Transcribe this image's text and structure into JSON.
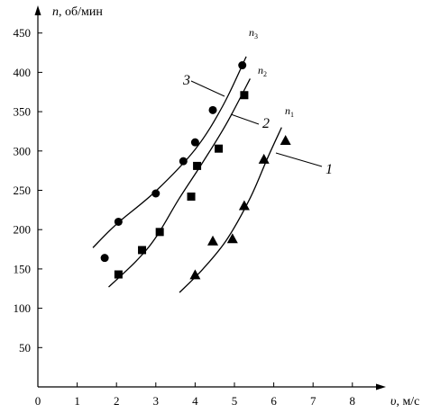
{
  "chart_data": {
    "type": "scatter",
    "title": "",
    "xlabel": "υ, м/с",
    "xlabel_var": "υ",
    "xlabel_unit": ", м/с",
    "ylabel": "n, об/мин",
    "ylabel_var": "n",
    "ylabel_unit": ", об/мин",
    "xlim": [
      0,
      8.6
    ],
    "ylim": [
      0,
      470
    ],
    "xticks": [
      0,
      1,
      2,
      3,
      4,
      5,
      6,
      7,
      8
    ],
    "yticks": [
      50,
      100,
      150,
      200,
      250,
      300,
      350,
      400,
      450
    ],
    "grid": false,
    "legend": "none",
    "series": [
      {
        "id": "3",
        "number_label": "3",
        "curve_label": "n",
        "curve_sub": "3",
        "marker": "circle",
        "points": [
          [
            1.7,
            164
          ],
          [
            2.05,
            210
          ],
          [
            3.0,
            246
          ],
          [
            3.7,
            287
          ],
          [
            4.0,
            311
          ],
          [
            4.45,
            352
          ],
          [
            5.2,
            409
          ]
        ],
        "curve": [
          [
            1.4,
            177
          ],
          [
            2.0,
            207
          ],
          [
            3.0,
            249
          ],
          [
            4.0,
            302
          ],
          [
            4.7,
            357
          ],
          [
            5.3,
            420
          ]
        ]
      },
      {
        "id": "2",
        "number_label": "2",
        "curve_label": "n",
        "curve_sub": "2",
        "marker": "square",
        "points": [
          [
            2.05,
            143
          ],
          [
            2.65,
            174
          ],
          [
            3.1,
            197
          ],
          [
            3.9,
            242
          ],
          [
            4.05,
            281
          ],
          [
            4.6,
            303
          ],
          [
            5.25,
            371
          ]
        ],
        "curve": [
          [
            1.8,
            127
          ],
          [
            2.5,
            160
          ],
          [
            3.0,
            190
          ],
          [
            3.6,
            240
          ],
          [
            4.2,
            286
          ],
          [
            4.8,
            335
          ],
          [
            5.4,
            392
          ]
        ]
      },
      {
        "id": "1",
        "number_label": "1",
        "curve_label": "n",
        "curve_sub": "1",
        "marker": "triangle",
        "points": [
          [
            4.0,
            142
          ],
          [
            4.45,
            185
          ],
          [
            4.95,
            188
          ],
          [
            5.25,
            230
          ],
          [
            5.75,
            289
          ],
          [
            6.3,
            313
          ]
        ],
        "curve": [
          [
            3.6,
            120
          ],
          [
            4.2,
            150
          ],
          [
            4.8,
            187
          ],
          [
            5.4,
            240
          ],
          [
            5.85,
            292
          ],
          [
            6.2,
            330
          ]
        ]
      }
    ],
    "colors": {
      "ink": "#000000",
      "background": "#ffffff"
    }
  }
}
